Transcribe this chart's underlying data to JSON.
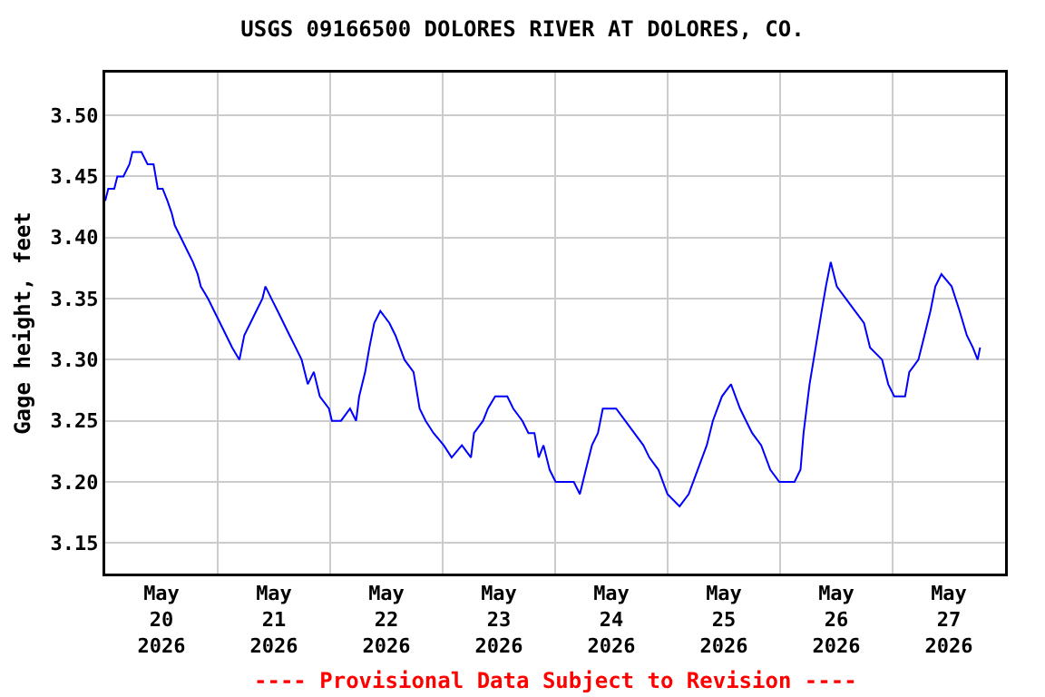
{
  "chart_data": {
    "type": "line",
    "title": "USGS 09166500 DOLORES RIVER AT DOLORES, CO.",
    "ylabel": "Gage height, feet",
    "annotations": [
      "---- Provisional Data Subject to Revision ----"
    ],
    "x": [
      "2026-05-20T00:00",
      "2026-05-20T00:39",
      "2026-05-20T01:56",
      "2026-05-20T02:35",
      "2026-05-20T03:52",
      "2026-05-20T05:10",
      "2026-05-20T05:48",
      "2026-05-20T07:44",
      "2026-05-20T09:02",
      "2026-05-20T10:19",
      "2026-05-20T11:13",
      "2026-05-20T12:15",
      "2026-05-20T13:17",
      "2026-05-20T14:11",
      "2026-05-20T14:50",
      "2026-05-20T16:08",
      "2026-05-20T17:25",
      "2026-05-20T18:42",
      "2026-05-20T19:44",
      "2026-05-20T20:23",
      "2026-05-20T21:56",
      "2026-05-20T23:13",
      "2026-05-21T00:31",
      "2026-05-21T01:48",
      "2026-05-21T03:05",
      "2026-05-21T04:38",
      "2026-05-21T05:40",
      "2026-05-21T06:58",
      "2026-05-21T08:15",
      "2026-05-21T09:32",
      "2026-05-21T10:11",
      "2026-05-21T11:28",
      "2026-05-21T12:46",
      "2026-05-21T14:03",
      "2026-05-21T15:20",
      "2026-05-21T16:38",
      "2026-05-21T17:55",
      "2026-05-21T19:13",
      "2026-05-21T20:30",
      "2026-05-21T21:47",
      "2026-05-21T23:44",
      "2026-05-22T00:22",
      "2026-05-22T02:18",
      "2026-05-22T04:14",
      "2026-05-22T05:32",
      "2026-05-22T06:11",
      "2026-05-22T07:28",
      "2026-05-22T08:22",
      "2026-05-22T09:24",
      "2026-05-22T10:42",
      "2026-05-22T12:38",
      "2026-05-22T13:55",
      "2026-05-22T15:51",
      "2026-05-22T17:47",
      "2026-05-22T19:05",
      "2026-05-22T20:22",
      "2026-05-22T22:03",
      "2026-05-23T00:14",
      "2026-05-23T01:55",
      "2026-05-23T04:06",
      "2026-05-23T06:02",
      "2026-05-23T06:41",
      "2026-05-23T08:37",
      "2026-05-23T09:39",
      "2026-05-23T11:12",
      "2026-05-23T13:47",
      "2026-05-23T15:04",
      "2026-05-23T17:00",
      "2026-05-23T18:18",
      "2026-05-23T19:35",
      "2026-05-23T20:29",
      "2026-05-23T21:31",
      "2026-05-23T22:49",
      "2026-05-24T00:06",
      "2026-05-24T02:02",
      "2026-05-24T03:59",
      "2026-05-24T05:16",
      "2026-05-24T06:33",
      "2026-05-24T07:51",
      "2026-05-24T09:08",
      "2026-05-24T10:10",
      "2026-05-24T13:01",
      "2026-05-24T14:57",
      "2026-05-24T16:53",
      "2026-05-24T18:49",
      "2026-05-24T20:06",
      "2026-05-24T22:02",
      "2026-05-24T23:58",
      "2026-05-25T02:33",
      "2026-05-25T04:29",
      "2026-05-25T06:25",
      "2026-05-25T08:21",
      "2026-05-25T09:39",
      "2026-05-25T11:35",
      "2026-05-25T13:31",
      "2026-05-25T15:27",
      "2026-05-25T16:44",
      "2026-05-25T18:02",
      "2026-05-25T19:58",
      "2026-05-25T21:54",
      "2026-05-25T23:50",
      "2026-05-26T03:04",
      "2026-05-26T04:21",
      "2026-05-26T05:00",
      "2026-05-26T06:17",
      "2026-05-26T07:35",
      "2026-05-26T08:52",
      "2026-05-26T09:46",
      "2026-05-26T10:48",
      "2026-05-26T12:05",
      "2026-05-26T14:02",
      "2026-05-26T15:58",
      "2026-05-26T17:54",
      "2026-05-26T19:11",
      "2026-05-26T21:46",
      "2026-05-26T23:04",
      "2026-05-27T00:21",
      "2026-05-27T02:40",
      "2026-05-27T03:34",
      "2026-05-27T05:30",
      "2026-05-27T06:48",
      "2026-05-27T08:05",
      "2026-05-27T09:07",
      "2026-05-27T10:25",
      "2026-05-27T12:36",
      "2026-05-27T14:17",
      "2026-05-27T15:50",
      "2026-05-27T17:07",
      "2026-05-27T18:09",
      "2026-05-27T18:40"
    ],
    "series": [
      {
        "color": "#0000ff",
        "values": [
          3.43,
          3.44,
          3.44,
          3.45,
          3.45,
          3.46,
          3.47,
          3.47,
          3.46,
          3.46,
          3.44,
          3.44,
          3.43,
          3.42,
          3.41,
          3.4,
          3.39,
          3.38,
          3.37,
          3.36,
          3.35,
          3.34,
          3.33,
          3.32,
          3.31,
          3.3,
          3.32,
          3.33,
          3.34,
          3.35,
          3.36,
          3.35,
          3.34,
          3.33,
          3.32,
          3.31,
          3.3,
          3.28,
          3.29,
          3.27,
          3.26,
          3.25,
          3.25,
          3.26,
          3.25,
          3.27,
          3.29,
          3.31,
          3.33,
          3.34,
          3.33,
          3.32,
          3.3,
          3.29,
          3.26,
          3.25,
          3.24,
          3.23,
          3.22,
          3.23,
          3.22,
          3.24,
          3.25,
          3.26,
          3.27,
          3.27,
          3.26,
          3.25,
          3.24,
          3.24,
          3.22,
          3.23,
          3.21,
          3.2,
          3.2,
          3.2,
          3.19,
          3.21,
          3.23,
          3.24,
          3.26,
          3.26,
          3.25,
          3.24,
          3.23,
          3.22,
          3.21,
          3.19,
          3.18,
          3.19,
          3.21,
          3.23,
          3.25,
          3.27,
          3.28,
          3.26,
          3.25,
          3.24,
          3.23,
          3.21,
          3.2,
          3.2,
          3.21,
          3.24,
          3.28,
          3.31,
          3.34,
          3.36,
          3.38,
          3.36,
          3.35,
          3.34,
          3.33,
          3.31,
          3.3,
          3.28,
          3.27,
          3.27,
          3.29,
          3.3,
          3.32,
          3.34,
          3.36,
          3.37,
          3.36,
          3.34,
          3.32,
          3.31,
          3.3,
          3.31
        ]
      }
    ],
    "xlim": [
      "2026-05-20",
      "2026-05-28"
    ],
    "xticks": [
      {
        "value": "2026-05-20T12:00",
        "label": "May\n20\n2026"
      },
      {
        "value": "2026-05-21T12:00",
        "label": "May\n21\n2026"
      },
      {
        "value": "2026-05-22T12:00",
        "label": "May\n22\n2026"
      },
      {
        "value": "2026-05-23T12:00",
        "label": "May\n23\n2026"
      },
      {
        "value": "2026-05-24T12:00",
        "label": "May\n24\n2026"
      },
      {
        "value": "2026-05-25T12:00",
        "label": "May\n25\n2026"
      },
      {
        "value": "2026-05-26T12:00",
        "label": "May\n26\n2026"
      },
      {
        "value": "2026-05-27T12:00",
        "label": "May\n27\n2026"
      },
      {
        "value": "2026-05-21",
        "label": null
      },
      {
        "value": "2026-05-22",
        "label": null
      },
      {
        "value": "2026-05-23",
        "label": null
      },
      {
        "value": "2026-05-24",
        "label": null
      },
      {
        "value": "2026-05-25",
        "label": null
      },
      {
        "value": "2026-05-26",
        "label": null
      },
      {
        "value": "2026-05-27",
        "label": null
      }
    ],
    "ylim": [
      3.125,
      3.535
    ],
    "yticks": [
      {
        "value": 3.15,
        "label": "3.15"
      },
      {
        "value": 3.2,
        "label": "3.20"
      },
      {
        "value": 3.25,
        "label": "3.25"
      },
      {
        "value": 3.3,
        "label": "3.30"
      },
      {
        "value": 3.35,
        "label": "3.35"
      },
      {
        "value": 3.4,
        "label": "3.40"
      },
      {
        "value": 3.45,
        "label": "3.45"
      },
      {
        "value": 3.5,
        "label": "3.50"
      }
    ],
    "grid": true,
    "marker": "none",
    "line_style": "solid"
  }
}
